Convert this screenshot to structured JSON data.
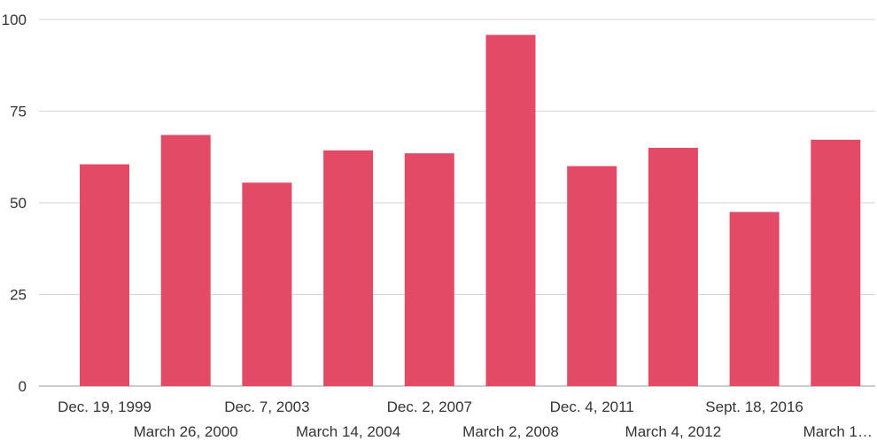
{
  "chart_data": {
    "type": "bar",
    "title": "",
    "xlabel": "",
    "ylabel": "",
    "ylim": [
      0,
      100
    ],
    "yticks": [
      "0",
      "25",
      "50",
      "75",
      "100"
    ],
    "grid": true,
    "legend": "none",
    "bar_color": "#E34A66",
    "categories": [
      "Dec. 19, 1999",
      "March 26, 2000",
      "Dec. 7, 2003",
      "March 14, 2004",
      "Dec. 2, 2007",
      "March 2, 2008",
      "Dec. 4, 2011",
      "March 4, 2012",
      "Sept. 18, 2016",
      "March 1…"
    ],
    "values": [
      60.5,
      68.5,
      55.5,
      64.3,
      63.5,
      95.8,
      60.0,
      65.0,
      47.5,
      67.2
    ]
  }
}
